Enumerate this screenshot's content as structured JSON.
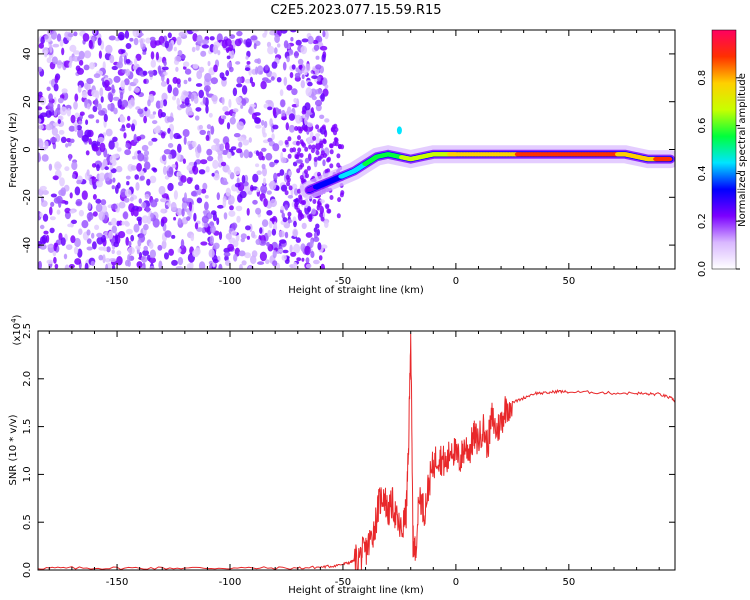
{
  "title": "C2E5.2023.077.15.59.R15",
  "chart_data": [
    {
      "type": "heatmap",
      "xlabel": "Height of straight line (km)",
      "ylabel": "Frequency (Hz)",
      "xlim": [
        -185,
        97
      ],
      "ylim": [
        -50,
        50
      ],
      "xticks": [
        -150,
        -100,
        -50,
        0,
        50
      ],
      "yticks": [
        -40,
        -20,
        0,
        20,
        40
      ],
      "colorbar": {
        "label": "Normalized spectral amplitude",
        "range": [
          0,
          1
        ],
        "ticks": [
          "0.0",
          "0.2",
          "0.4",
          "0.6",
          "0.8"
        ],
        "colors": [
          "#ffffff",
          "#d9b8ff",
          "#7b00ff",
          "#0000ff",
          "#00e5ff",
          "#00ff3c",
          "#c8ff00",
          "#ffd000",
          "#ff3000",
          "#ff0060"
        ]
      },
      "trace": {
        "x": [
          -65,
          -60,
          -55,
          -50,
          -45,
          -40,
          -35,
          -30,
          -25,
          -20,
          -15,
          -10,
          -5,
          0,
          10,
          20,
          30,
          40,
          50,
          60,
          70,
          75,
          80,
          85,
          90,
          95
        ],
        "y": [
          -17,
          -15,
          -13,
          -11,
          -9,
          -6,
          -3,
          -2,
          -3,
          -4,
          -3,
          -2,
          -2,
          -2,
          -2,
          -2,
          -2,
          -2,
          -2,
          -2,
          -2,
          -2,
          -3,
          -4,
          -4,
          -4
        ],
        "amplitude": [
          0.25,
          0.3,
          0.35,
          0.4,
          0.45,
          0.5,
          0.55,
          0.6,
          0.6,
          0.65,
          0.65,
          0.7,
          0.7,
          0.75,
          0.75,
          0.8,
          0.85,
          0.85,
          0.9,
          0.9,
          0.85,
          0.8,
          0.75,
          0.8,
          0.85,
          0.9
        ]
      },
      "noise_region_x": [
        -185,
        -63
      ]
    },
    {
      "type": "line",
      "xlabel": "Height of straight line (km)",
      "ylabel": "SNR (10 * v/v)",
      "y_scale_label": "(x10",
      "y_scale_exp": "4",
      "xlim": [
        -185,
        97
      ],
      "ylim": [
        0,
        2.5
      ],
      "xticks": [
        -150,
        -100,
        -50,
        0,
        50
      ],
      "yticks": [
        "0.0",
        "0.5",
        "1.0",
        "1.5",
        "2.0",
        "2.5"
      ],
      "series": [
        {
          "color": "#e8282a",
          "x": [
            -185,
            -170,
            -150,
            -130,
            -110,
            -90,
            -70,
            -60,
            -55,
            -50,
            -47,
            -45,
            -42,
            -40,
            -38,
            -36,
            -34,
            -32,
            -30,
            -28,
            -26,
            -24,
            -22,
            -21,
            -20,
            -19,
            -18,
            -16,
            -14,
            -12,
            -10,
            -8,
            -6,
            -4,
            -2,
            0,
            2,
            4,
            6,
            8,
            10,
            12,
            14,
            16,
            18,
            20,
            22,
            25,
            30,
            35,
            40,
            45,
            50,
            60,
            70,
            80,
            85,
            90,
            95,
            97
          ],
          "y": [
            0.02,
            0.02,
            0.02,
            0.02,
            0.02,
            0.02,
            0.02,
            0.03,
            0.04,
            0.06,
            0.08,
            0.1,
            0.15,
            0.2,
            0.3,
            0.45,
            0.7,
            0.8,
            0.6,
            0.7,
            0.5,
            0.4,
            0.6,
            1.2,
            2.5,
            0.3,
            0.2,
            0.8,
            0.6,
            0.9,
            1.1,
            1.2,
            1.15,
            1.1,
            1.3,
            1.2,
            1.15,
            1.3,
            1.25,
            1.4,
            1.35,
            1.5,
            1.3,
            1.6,
            1.45,
            1.55,
            1.7,
            1.75,
            1.8,
            1.85,
            1.85,
            1.87,
            1.86,
            1.86,
            1.85,
            1.85,
            1.84,
            1.84,
            1.8,
            1.77
          ]
        }
      ]
    }
  ]
}
